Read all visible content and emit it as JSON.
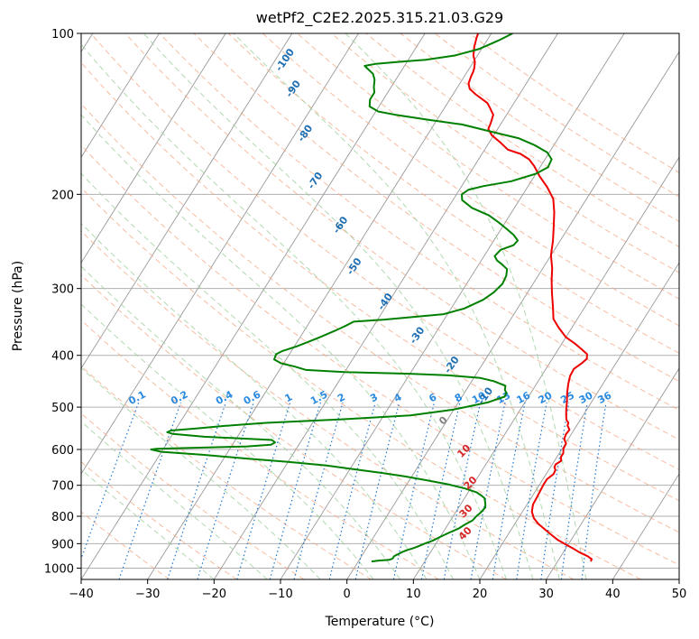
{
  "chart_data": {
    "type": "line",
    "title": "wetPf2_C2E2.2025.315.21.03.G29",
    "xlabel": "Temperature (°C)",
    "ylabel": "Pressure (hPa)",
    "xlim": [
      -40,
      50
    ],
    "ylim": [
      1050,
      100
    ],
    "y_scale": "log",
    "grid": true,
    "x_ticks": [
      "−40",
      "−30",
      "−20",
      "−10",
      "0",
      "10",
      "20",
      "30",
      "40",
      "50"
    ],
    "y_ticks": [
      "100",
      "200",
      "300",
      "400",
      "500",
      "600",
      "700",
      "800",
      "900",
      "1000"
    ],
    "colors": {
      "temperature": "#ee0000",
      "dewpoint": "#008000",
      "isotherm": "#999999",
      "dry_adiabat": "#f4a582",
      "moist_adiabat": "#9dcf9d",
      "mixing_ratio": "#1f78d1",
      "tsa_label": "#d62728",
      "height_label": "#1f6fb5"
    },
    "series": [
      {
        "color": "#ee0000",
        "points": [
          [
            35.0,
            972
          ],
          [
            34.9,
            962
          ],
          [
            34.0,
            950
          ],
          [
            32.5,
            935
          ],
          [
            31.0,
            918
          ],
          [
            29.5,
            902
          ],
          [
            28.0,
            886
          ],
          [
            26.5,
            866
          ],
          [
            25.0,
            846
          ],
          [
            23.5,
            826
          ],
          [
            22.3,
            806
          ],
          [
            21.4,
            784
          ],
          [
            20.9,
            760
          ],
          [
            20.8,
            736
          ],
          [
            20.7,
            715
          ],
          [
            20.6,
            697
          ],
          [
            20.6,
            682
          ],
          [
            21.1,
            667
          ],
          [
            21.0,
            655
          ],
          [
            20.6,
            648
          ],
          [
            20.5,
            640
          ],
          [
            21.0,
            630
          ],
          [
            20.6,
            620
          ],
          [
            20.6,
            610
          ],
          [
            20.2,
            598
          ],
          [
            20.1,
            585
          ],
          [
            19.4,
            574
          ],
          [
            19.2,
            562
          ],
          [
            19.3,
            551
          ],
          [
            18.6,
            541
          ],
          [
            18.5,
            535
          ],
          [
            17.9,
            528
          ],
          [
            17.4,
            517
          ],
          [
            16.9,
            505
          ],
          [
            16.3,
            489
          ],
          [
            15.5,
            471
          ],
          [
            14.8,
            453
          ],
          [
            14.3,
            437
          ],
          [
            14.2,
            424
          ],
          [
            14.9,
            413
          ],
          [
            15.2,
            406
          ],
          [
            14.8,
            398
          ],
          [
            13.4,
            389
          ],
          [
            12.1,
            381
          ],
          [
            10.0,
            370
          ],
          [
            8.0,
            355
          ],
          [
            6.4,
            342
          ],
          [
            5.2,
            325
          ],
          [
            3.8,
            307
          ],
          [
            2.5,
            290
          ],
          [
            1.4,
            275
          ],
          [
            0.0,
            260
          ],
          [
            -1.1,
            244
          ],
          [
            -2.3,
            230
          ],
          [
            -3.6,
            216
          ],
          [
            -5.0,
            204
          ],
          [
            -7.0,
            194
          ],
          [
            -9.2,
            185
          ],
          [
            -11.0,
            177
          ],
          [
            -12.4,
            172
          ],
          [
            -14.2,
            168
          ],
          [
            -16.5,
            165
          ],
          [
            -18.3,
            160
          ],
          [
            -20.3,
            155
          ],
          [
            -21.4,
            151
          ],
          [
            -21.6,
            147
          ],
          [
            -22.0,
            142
          ],
          [
            -23.1,
            138
          ],
          [
            -24.0,
            135
          ],
          [
            -25.0,
            133
          ],
          [
            -26.6,
            130
          ],
          [
            -28.0,
            127
          ],
          [
            -28.7,
            124
          ],
          [
            -29.0,
            120
          ],
          [
            -29.1,
            118
          ],
          [
            -29.3,
            116
          ],
          [
            -29.8,
            113
          ],
          [
            -30.6,
            110
          ],
          [
            -31.3,
            106
          ],
          [
            -31.8,
            102
          ],
          [
            -32.0,
            100
          ]
        ]
      },
      {
        "color": "#008000",
        "points": [
          [
            2.0,
            972
          ],
          [
            3.0,
            968
          ],
          [
            4.5,
            965
          ],
          [
            4.9,
            960
          ],
          [
            4.9,
            950
          ],
          [
            5.6,
            935
          ],
          [
            6.2,
            926
          ],
          [
            7.0,
            918
          ],
          [
            7.5,
            912
          ],
          [
            8.3,
            900
          ],
          [
            8.7,
            895
          ],
          [
            9.2,
            889
          ],
          [
            10.2,
            871
          ],
          [
            11.0,
            858
          ],
          [
            12.0,
            843
          ],
          [
            12.5,
            830
          ],
          [
            13.3,
            815
          ],
          [
            13.5,
            800
          ],
          [
            13.8,
            787
          ],
          [
            14.0,
            770
          ],
          [
            13.6,
            756
          ],
          [
            13.0,
            740
          ],
          [
            12.4,
            733
          ],
          [
            11.3,
            722
          ],
          [
            9.2,
            710
          ],
          [
            6.2,
            697
          ],
          [
            2.9,
            686
          ],
          [
            -1.0,
            674
          ],
          [
            -4.7,
            664
          ],
          [
            -9.0,
            654
          ],
          [
            -13.9,
            643
          ],
          [
            -20.0,
            633
          ],
          [
            -26.5,
            624
          ],
          [
            -33.5,
            614
          ],
          [
            -40.0,
            606
          ],
          [
            -41.8,
            600
          ],
          [
            -41.0,
            598
          ],
          [
            -36.0,
            596
          ],
          [
            -27.6,
            592
          ],
          [
            -24.2,
            588
          ],
          [
            -23.8,
            582
          ],
          [
            -24.5,
            576
          ],
          [
            -28.0,
            573
          ],
          [
            -35.0,
            568
          ],
          [
            -40.0,
            561
          ],
          [
            -41.0,
            557
          ],
          [
            -40.6,
            553
          ],
          [
            -37.0,
            548
          ],
          [
            -33.0,
            542
          ],
          [
            -27.0,
            535
          ],
          [
            -16.0,
            527
          ],
          [
            -6.0,
            518
          ],
          [
            0.0,
            505
          ],
          [
            4.4,
            490
          ],
          [
            6.4,
            478
          ],
          [
            6.3,
            470
          ],
          [
            5.8,
            464
          ],
          [
            5.5,
            456
          ],
          [
            3.3,
            447
          ],
          [
            1.0,
            441
          ],
          [
            -4.0,
            436
          ],
          [
            -10.0,
            433
          ],
          [
            -20.0,
            430
          ],
          [
            -26.0,
            426
          ],
          [
            -28.0,
            420
          ],
          [
            -30.4,
            414
          ],
          [
            -31.8,
            407
          ],
          [
            -32.0,
            398
          ],
          [
            -31.4,
            393
          ],
          [
            -29.7,
            385
          ],
          [
            -28.4,
            378
          ],
          [
            -27.0,
            370
          ],
          [
            -25.4,
            360
          ],
          [
            -24.2,
            352
          ],
          [
            -23.4,
            346
          ],
          [
            -19.0,
            343
          ],
          [
            -10.6,
            335
          ],
          [
            -8.0,
            327
          ],
          [
            -6.0,
            315
          ],
          [
            -5.1,
            305
          ],
          [
            -4.6,
            294
          ],
          [
            -4.8,
            284
          ],
          [
            -5.3,
            276
          ],
          [
            -6.6,
            270
          ],
          [
            -7.6,
            266
          ],
          [
            -8.4,
            261
          ],
          [
            -8.1,
            254
          ],
          [
            -6.6,
            249
          ],
          [
            -6.4,
            244
          ],
          [
            -7.6,
            238
          ],
          [
            -9.2,
            232
          ],
          [
            -10.9,
            226
          ],
          [
            -13.1,
            219
          ],
          [
            -16.4,
            212
          ],
          [
            -18.6,
            205
          ],
          [
            -19.2,
            200
          ],
          [
            -18.6,
            196
          ],
          [
            -16.7,
            193
          ],
          [
            -13.0,
            189
          ],
          [
            -10.0,
            183
          ],
          [
            -8.8,
            178
          ],
          [
            -9.0,
            172
          ],
          [
            -10.3,
            167
          ],
          [
            -12.8,
            162
          ],
          [
            -16.0,
            157
          ],
          [
            -20.4,
            153
          ],
          [
            -25.8,
            148
          ],
          [
            -31.4,
            145
          ],
          [
            -36.7,
            142
          ],
          [
            -39.6,
            140
          ],
          [
            -41.4,
            137
          ],
          [
            -42.0,
            133
          ],
          [
            -42.0,
            129
          ],
          [
            -42.6,
            126
          ],
          [
            -43.2,
            122
          ],
          [
            -44.0,
            119
          ],
          [
            -45.0,
            117
          ],
          [
            -46.0,
            115
          ],
          [
            -44.5,
            114
          ],
          [
            -41.0,
            113
          ],
          [
            -37.4,
            112
          ],
          [
            -33.4,
            110
          ],
          [
            -30.4,
            107
          ],
          [
            -28.2,
            103
          ],
          [
            -26.8,
            100
          ]
        ]
      }
    ],
    "isotherm_temps": [
      -150,
      -140,
      -130,
      -120,
      -110,
      -100,
      -90,
      -80,
      -70,
      -60,
      -50,
      -40,
      -30,
      -20,
      -10,
      0,
      10,
      20,
      30,
      40,
      50
    ],
    "dry_adiabat_thetas": [
      243,
      253,
      263,
      273,
      283,
      293,
      303,
      313,
      323,
      333,
      343,
      353,
      363,
      373,
      383,
      393,
      403,
      413,
      423,
      433,
      443,
      453,
      463
    ],
    "moist_adiabat_bases": [
      -20,
      -12,
      -4,
      4,
      8,
      12,
      16,
      20,
      24,
      28,
      32,
      36
    ],
    "mixing_ratio_lines": [
      "0.1",
      "0.2",
      "0.4",
      "0.6",
      "1",
      "1.5",
      "2",
      "3",
      "4",
      "6",
      "8",
      "10",
      "13",
      "16",
      "20",
      "25",
      "30",
      "36"
    ],
    "height_labels": [
      {
        "text": "-100",
        "t": -58,
        "p": 113
      },
      {
        "text": "-90",
        "t": -54,
        "p": 128
      },
      {
        "text": "-80",
        "t": -48,
        "p": 155
      },
      {
        "text": "-70",
        "t": -42,
        "p": 190
      },
      {
        "text": "-60",
        "t": -34,
        "p": 230
      },
      {
        "text": "-50",
        "t": -28,
        "p": 275
      },
      {
        "text": "-40",
        "t": -20,
        "p": 320
      },
      {
        "text": "-30",
        "t": -12,
        "p": 370
      },
      {
        "text": "-20",
        "t": -4,
        "p": 420
      },
      {
        "text": "-10",
        "t": 4,
        "p": 480
      }
    ],
    "tsa_labels": [
      {
        "text": "0",
        "t": 0,
        "p": 535,
        "color": "#808080"
      },
      {
        "text": "10",
        "t": 6,
        "p": 610,
        "color": "#d62728"
      },
      {
        "text": "20",
        "t": 10,
        "p": 700,
        "color": "#d62728"
      },
      {
        "text": "30",
        "t": 12,
        "p": 790,
        "color": "#d62728"
      },
      {
        "text": "40",
        "t": 14,
        "p": 870,
        "color": "#d62728"
      }
    ]
  }
}
